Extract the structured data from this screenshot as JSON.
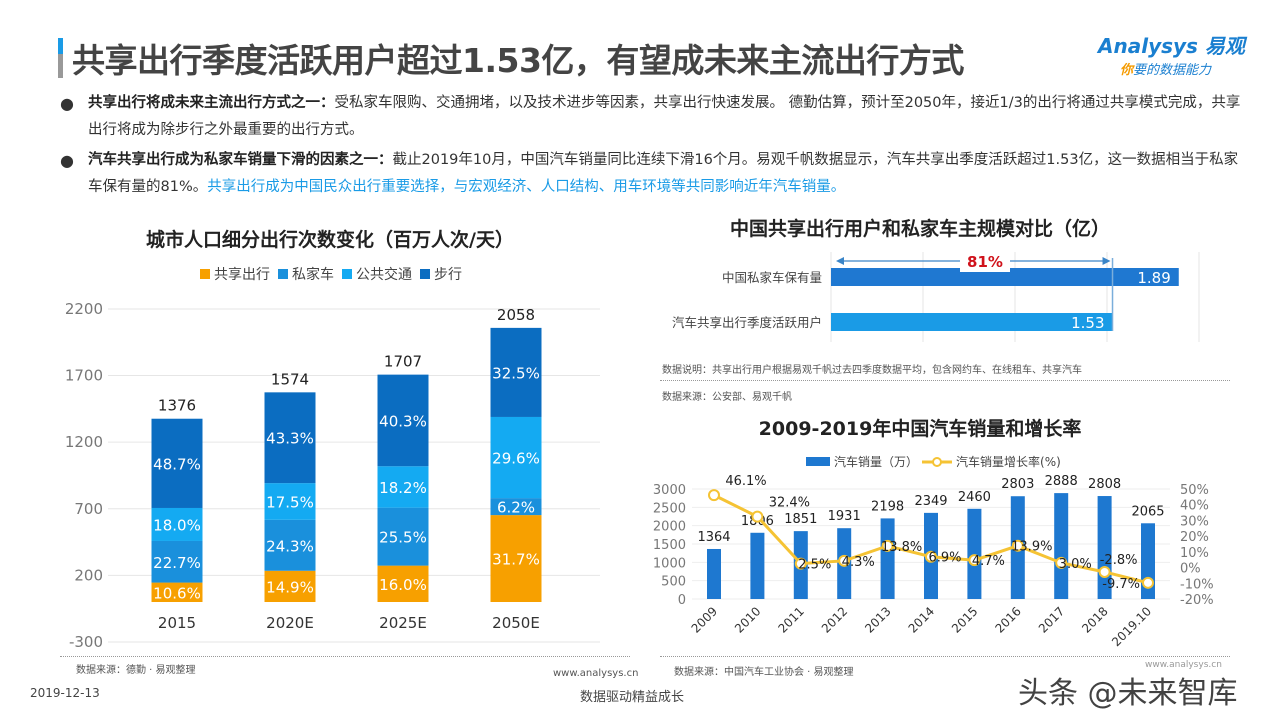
{
  "header": {
    "title": "共享出行季度活跃用户超过1.53亿，有望成未来主流出行方式",
    "logo_text": "Analysys 易观",
    "logo_slogan_accent": "你",
    "logo_slogan": "要的数据能力"
  },
  "bullets": [
    {
      "bold": "共享出行将成未来主流出行方式之一：",
      "text": "受私家车限购、交通拥堵，以及技术进步等因素，共享出行快速发展。 德勤估算，预计至2050年，接近1/3的出行将通过共享模式完成，共享出行将成为除步行之外最重要的出行方式。",
      "highlight": ""
    },
    {
      "bold": "汽车共享出行成为私家车销量下滑的因素之一：",
      "text": "截止2019年10月，中国汽车销量同比连续下滑16个月。易观千帆数据显示，汽车共享出季度活跃超过1.53亿，这一数据相当于私家车保有量的81%。",
      "highlight": "共享出行成为中国民众出行重要选择，与宏观经济、人口结构、用车环境等共同影响近年汽车销量。"
    }
  ],
  "chart_data": [
    {
      "type": "bar",
      "stacked": true,
      "title": "城市人口细分出行次数变化（百万人次/天）",
      "categories": [
        "2015",
        "2020E",
        "2025E",
        "2050E"
      ],
      "totals": [
        1376,
        1574,
        1707,
        2058
      ],
      "series": [
        {
          "name": "共享出行",
          "color": "#f7a000",
          "values_pct": [
            10.6,
            14.9,
            16.0,
            31.7
          ]
        },
        {
          "name": "私家车",
          "color": "#1a90dc",
          "values_pct": [
            22.7,
            24.3,
            25.5,
            6.2
          ]
        },
        {
          "name": "公共交通",
          "color": "#14aaf2",
          "values_pct": [
            18.0,
            17.5,
            18.2,
            29.6
          ]
        },
        {
          "name": "步行",
          "color": "#0b6dc1",
          "values_pct": [
            48.7,
            43.3,
            40.3,
            32.5
          ]
        }
      ],
      "ylim": [
        -300,
        2200
      ],
      "yticks": [
        -300,
        200,
        700,
        1200,
        1700,
        2200
      ],
      "grid": true,
      "legend": "top",
      "source": "数据来源：德勤 · 易观整理"
    },
    {
      "type": "bar",
      "orientation": "horizontal",
      "title": "中国共享出行用户和私家车主规模对比（亿）",
      "categories": [
        "中国私家车保有量",
        "汽车共享出行季度活跃用户"
      ],
      "values": [
        1.89,
        1.53
      ],
      "colors": [
        "#1f78d1",
        "#1a9be6"
      ],
      "xlim": [
        0,
        2
      ],
      "annotation": "81%",
      "note": "数据说明：共享出行用户根据易观千帆过去四季度数据平均，包含网约车、在线租车、共享汽车",
      "source": "数据来源：公安部、易观千帆"
    },
    {
      "type": "bar+line",
      "title": "2009-2019年中国汽车销量和增长率",
      "categories": [
        "2009",
        "2010",
        "2011",
        "2012",
        "2013",
        "2014",
        "2015",
        "2016",
        "2017",
        "2018",
        "2019.10"
      ],
      "series": [
        {
          "name": "汽车销量（万）",
          "type": "bar",
          "color": "#1e78d0",
          "values": [
            1364,
            1806,
            1851,
            1931,
            2198,
            2349,
            2460,
            2803,
            2888,
            2808,
            2065
          ]
        },
        {
          "name": "汽车销量增长率(%)",
          "type": "line",
          "color": "#f5c334",
          "values": [
            46.1,
            32.4,
            2.5,
            4.3,
            13.8,
            6.9,
            4.7,
            13.9,
            3.0,
            -2.8,
            -9.7
          ]
        }
      ],
      "ylim": [
        0,
        3000
      ],
      "yticks": [
        0,
        500,
        1000,
        1500,
        2000,
        2500,
        3000
      ],
      "y2lim": [
        -20,
        50
      ],
      "y2ticks": [
        "-20%",
        "-10%",
        "0%",
        "10%",
        "20%",
        "30%",
        "40%",
        "50%"
      ],
      "legend": "top",
      "source": "数据来源：中国汽车工业协会 · 易观整理"
    }
  ],
  "footer": {
    "date": "2019-12-13",
    "slogan": "数据驱动精益成长",
    "url": "www.analysys.cn",
    "url_right": "www.analysys.cn"
  },
  "watermark": "头条 @未来智库"
}
